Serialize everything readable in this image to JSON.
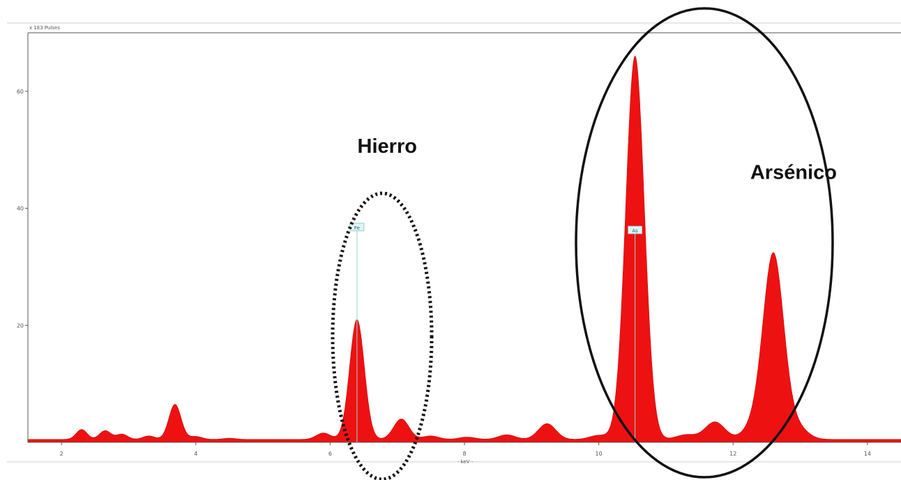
{
  "chart_data": {
    "type": "area",
    "y_unit_label": "x 1E3 Pulses",
    "x_unit_label": "- keV -",
    "xlim": [
      1.5,
      14.5
    ],
    "ylim": [
      0,
      70
    ],
    "x_ticks": [
      2,
      4,
      6,
      8,
      10,
      12,
      14
    ],
    "y_ticks": [
      20,
      40,
      60
    ],
    "x_tick_labels": [
      "2",
      "4",
      "6",
      "8",
      "10",
      "12",
      "14"
    ],
    "y_tick_labels": [
      "20",
      "40",
      "60"
    ],
    "grid": false,
    "series": [
      {
        "color": "#ee1111",
        "baseline": 0.5,
        "peaks": [
          {
            "x": 2.3,
            "y": 2.2
          },
          {
            "x": 2.65,
            "y": 2.0
          },
          {
            "x": 2.9,
            "y": 1.4
          },
          {
            "x": 3.3,
            "y": 1.1
          },
          {
            "x": 3.69,
            "y": 6.5
          },
          {
            "x": 4.0,
            "y": 1.0
          },
          {
            "x": 4.5,
            "y": 0.7
          },
          {
            "x": 5.9,
            "y": 1.6
          },
          {
            "x": 6.4,
            "y": 21.0
          },
          {
            "x": 7.06,
            "y": 4.0
          },
          {
            "x": 7.5,
            "y": 1.1
          },
          {
            "x": 8.04,
            "y": 0.9
          },
          {
            "x": 8.63,
            "y": 1.3
          },
          {
            "x": 9.23,
            "y": 3.2
          },
          {
            "x": 10.0,
            "y": 1.2
          },
          {
            "x": 10.54,
            "y": 66.0
          },
          {
            "x": 11.3,
            "y": 1.3
          },
          {
            "x": 11.73,
            "y": 3.5
          },
          {
            "x": 12.3,
            "y": 2.5
          },
          {
            "x": 12.6,
            "y": 32.0
          },
          {
            "x": 12.95,
            "y": 2.5
          }
        ]
      }
    ],
    "element_markers": [
      {
        "label": "Fe",
        "x": 6.4,
        "y": 36.5
      },
      {
        "label": "As",
        "x": 10.54,
        "y": 36.0
      }
    ],
    "annotations": [
      {
        "text": "Hierro",
        "x": 6.85,
        "y": 49.5
      },
      {
        "text": "Arsénico",
        "x": 12.9,
        "y": 45.0
      }
    ]
  }
}
